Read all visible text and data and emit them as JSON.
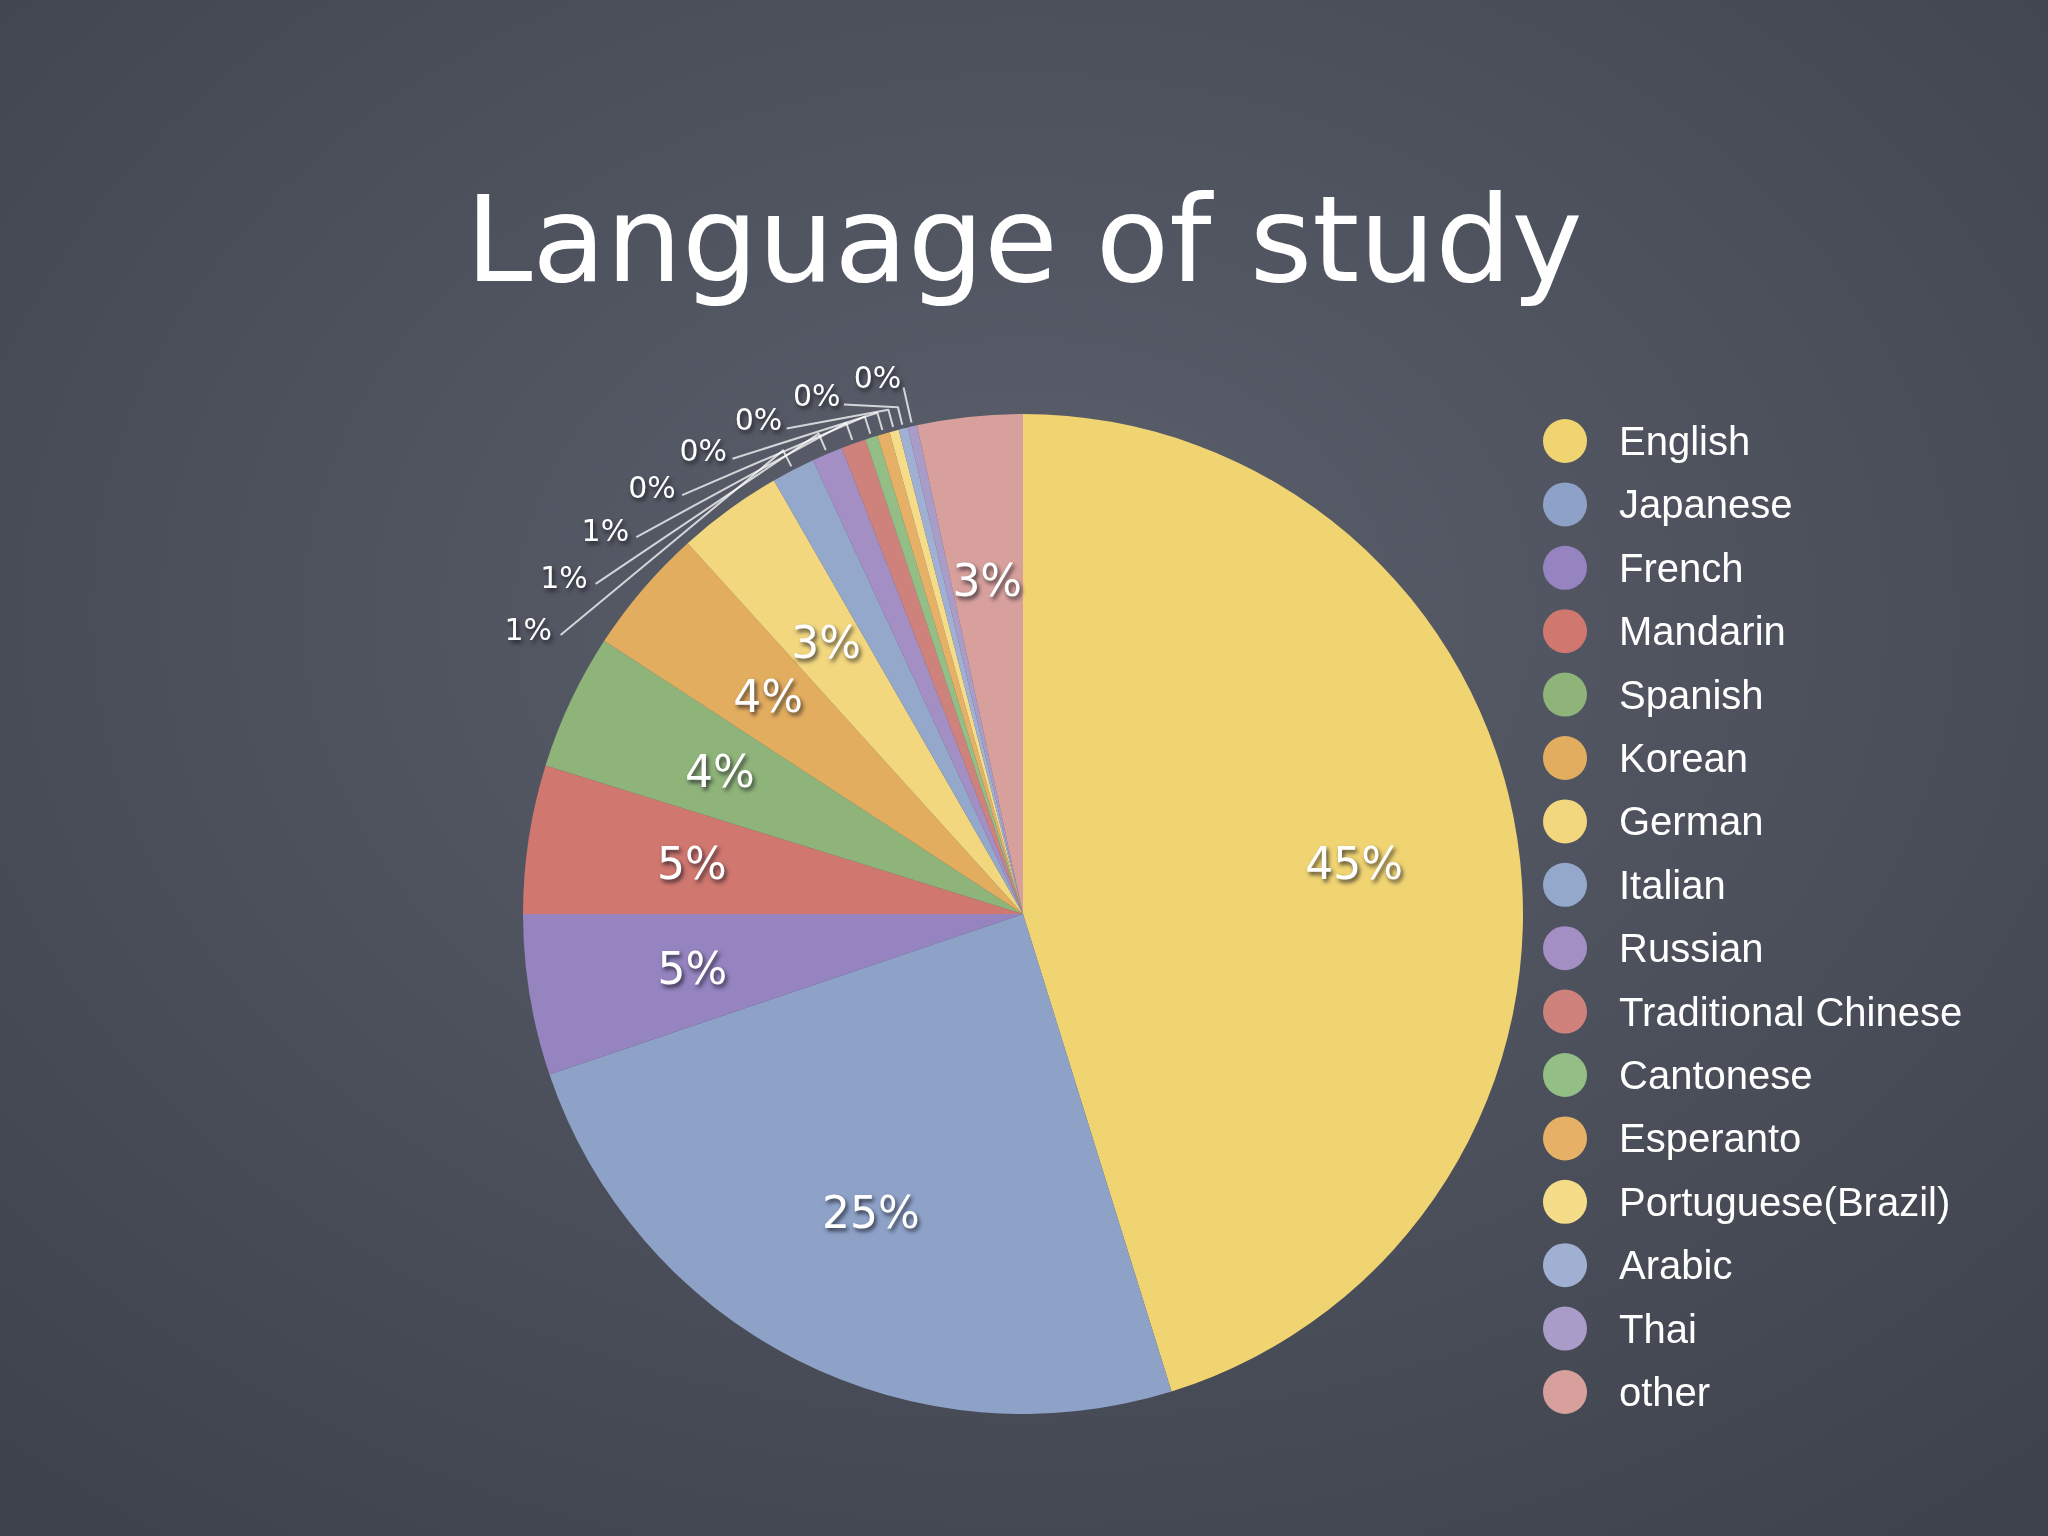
{
  "chart_data": {
    "type": "pie",
    "title": "Language of study",
    "categories": [
      "English",
      "Japanese",
      "French",
      "Mandarin",
      "Spanish",
      "Korean",
      "German",
      "Italian",
      "Russian",
      "Traditional Chinese",
      "Cantonese",
      "Esperanto",
      "Portuguese(Brazil)",
      "Arabic",
      "Thai",
      "other"
    ],
    "values": [
      45.2,
      24.6,
      5.2,
      4.8,
      4.4,
      4.1,
      3.4,
      1.4,
      1.0,
      0.8,
      0.4,
      0.4,
      0.3,
      0.3,
      0.3,
      3.4
    ],
    "colors": [
      "#f0d472",
      "#8ea2c8",
      "#9584c0",
      "#d0776f",
      "#8fb47a",
      "#e3ad5f",
      "#f2d77e",
      "#94a8cc",
      "#a48fc4",
      "#cf827c",
      "#93be86",
      "#e6b066",
      "#f4dc88",
      "#9fb0d2",
      "#a99cc9",
      "#d7a09c"
    ],
    "value_labels": [
      "45%",
      "25%",
      "5%",
      "5%",
      "4%",
      "4%",
      "3%",
      "1%",
      "1%",
      "1%",
      "0%",
      "0%",
      "0%",
      "0%",
      "0%",
      "3%"
    ],
    "legend": "right"
  }
}
